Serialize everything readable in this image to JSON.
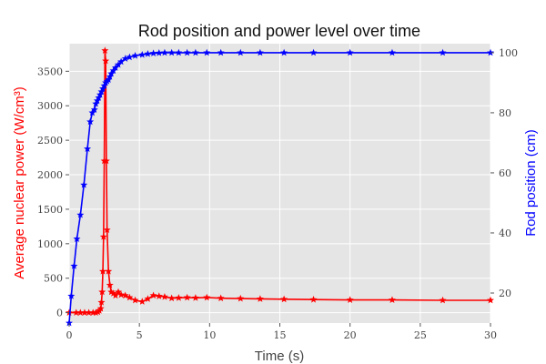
{
  "chart_data": {
    "type": "line",
    "title": "Rod position and power level over time",
    "xlabel": "Time (s)",
    "ylabel_left": "Average nuclear power (W/cm³)",
    "ylabel_right": "Rod position (cm)",
    "xlim": [
      0,
      30
    ],
    "ylim_left": [
      -150,
      3900
    ],
    "ylim_right": [
      10,
      103
    ],
    "x_ticks": [
      0,
      5,
      10,
      15,
      20,
      25,
      30
    ],
    "y_left_ticks": [
      0,
      500,
      1000,
      1500,
      2000,
      2500,
      3000,
      3500
    ],
    "y_right_ticks": [
      20,
      40,
      60,
      80,
      100
    ],
    "grid": true,
    "series": [
      {
        "axis": "left",
        "color": "#ff0000",
        "marker": "star",
        "x": [
          0.0,
          0.5,
          0.8,
          1.1,
          1.4,
          1.7,
          1.9,
          2.05,
          2.15,
          2.25,
          2.3,
          2.35,
          2.4,
          2.45,
          2.5,
          2.55,
          2.6,
          2.65,
          2.7,
          2.8,
          2.9,
          3.0,
          3.15,
          3.3,
          3.5,
          3.7,
          4.0,
          4.3,
          4.7,
          5.2,
          5.6,
          6.0,
          6.4,
          6.8,
          7.3,
          7.8,
          8.4,
          9.0,
          9.8,
          10.8,
          12.2,
          13.6,
          15.3,
          17.4,
          20.0,
          23.0,
          26.6,
          30.0
        ],
        "values": [
          0,
          0,
          0,
          0,
          0,
          0,
          0,
          10,
          30,
          60,
          150,
          300,
          600,
          1100,
          2200,
          3800,
          3650,
          2200,
          1200,
          600,
          400,
          300,
          280,
          250,
          300,
          260,
          250,
          220,
          180,
          160,
          200,
          250,
          240,
          230,
          210,
          215,
          220,
          215,
          220,
          210,
          205,
          200,
          195,
          190,
          185,
          185,
          180,
          180
        ]
      },
      {
        "axis": "right",
        "color": "#0000ff",
        "marker": "star",
        "x": [
          0.0,
          0.15,
          0.35,
          0.55,
          0.8,
          1.05,
          1.3,
          1.5,
          1.65,
          1.8,
          1.9,
          2.0,
          2.1,
          2.2,
          2.3,
          2.4,
          2.5,
          2.6,
          2.7,
          2.8,
          2.9,
          3.0,
          3.15,
          3.3,
          3.5,
          3.7,
          4.0,
          4.3,
          4.7,
          5.2,
          5.6,
          6.0,
          6.4,
          6.8,
          7.3,
          7.8,
          8.4,
          9.0,
          9.8,
          10.8,
          12.2,
          13.6,
          15.3,
          17.4,
          20.0,
          23.0,
          26.6,
          30.0
        ],
        "values": [
          10,
          19,
          29,
          38,
          46,
          56,
          68,
          77,
          80,
          81,
          83,
          84,
          85,
          86,
          87,
          88,
          89,
          90,
          90.5,
          91,
          92,
          93,
          94,
          95,
          96,
          97,
          98,
          98.5,
          99,
          99.3,
          99.6,
          99.8,
          99.9,
          100,
          100,
          100,
          100,
          100,
          100,
          100,
          100,
          100,
          100,
          100,
          100,
          100,
          100,
          100
        ]
      }
    ]
  }
}
